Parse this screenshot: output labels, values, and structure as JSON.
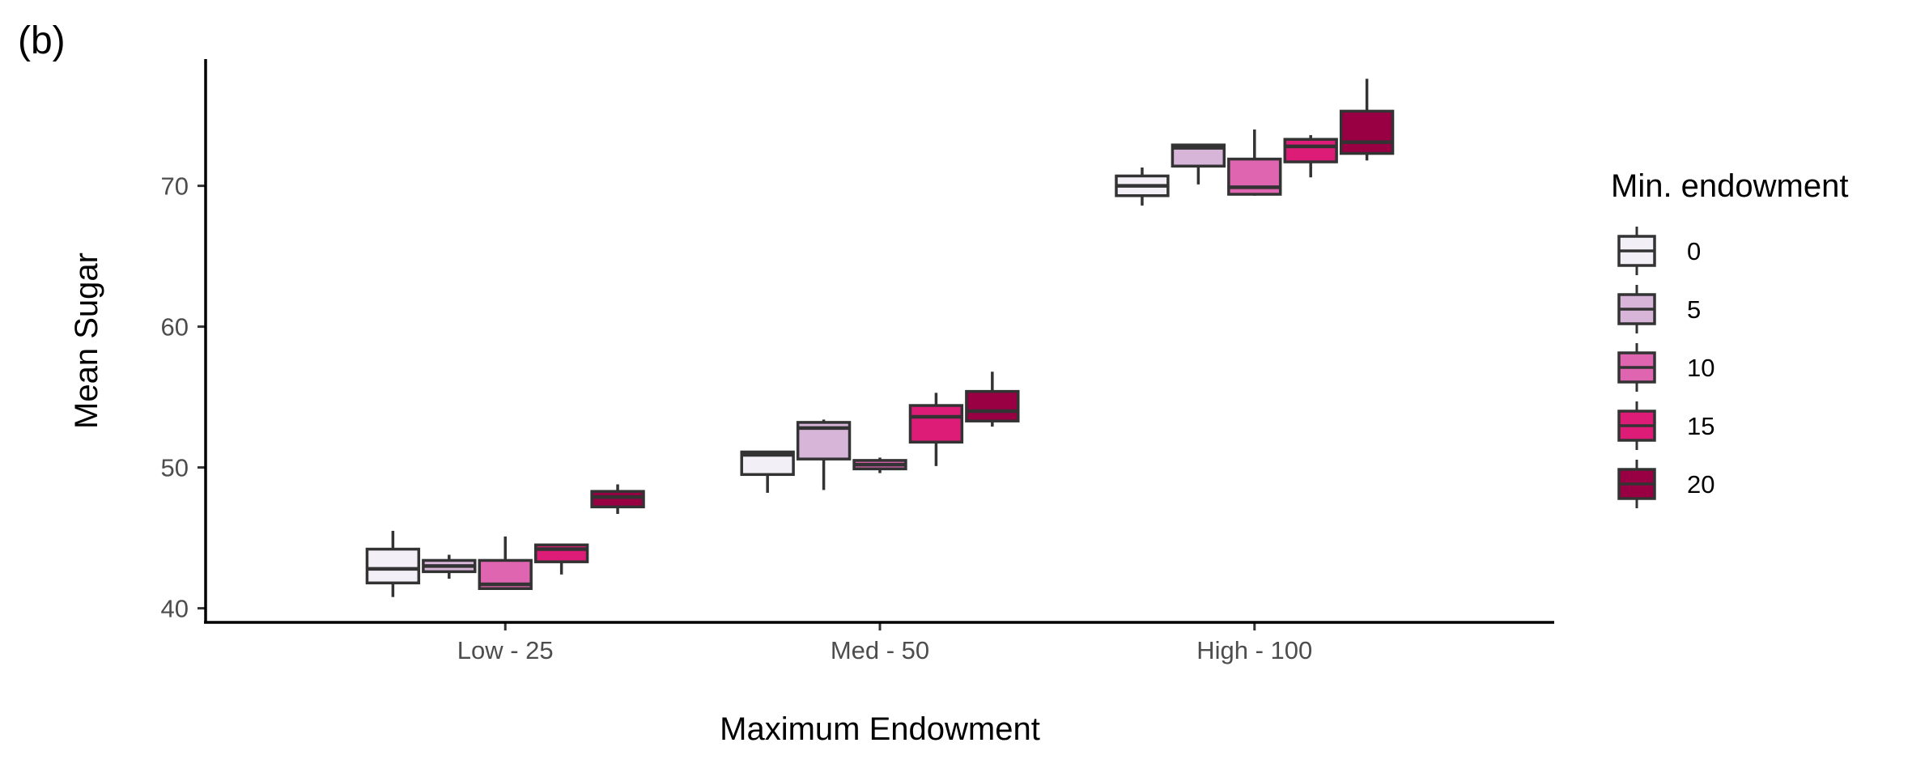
{
  "panel_label": "(b)",
  "chart_data": {
    "type": "boxplot",
    "xlabel": "Maximum Endowment",
    "ylabel": "Mean Sugar",
    "categories": [
      "Low - 25",
      "Med - 50",
      "High - 100"
    ],
    "ylim": [
      39,
      79
    ],
    "yticks": [
      40,
      50,
      60,
      70
    ],
    "grid": false,
    "legend": {
      "title": "Min. endowment",
      "position": "right"
    },
    "series": [
      {
        "name": "0",
        "color": "#f2eff7",
        "boxes": [
          {
            "whisker_low": 40.8,
            "q1": 41.8,
            "median": 42.8,
            "q3": 44.2,
            "whisker_high": 45.5
          },
          {
            "whisker_low": 48.2,
            "q1": 49.5,
            "median": 50.9,
            "q3": 51.1,
            "whisker_high": 51.1
          },
          {
            "whisker_low": 68.6,
            "q1": 69.3,
            "median": 70.0,
            "q3": 70.7,
            "whisker_high": 71.3
          }
        ]
      },
      {
        "name": "5",
        "color": "#d7b5d8",
        "boxes": [
          {
            "whisker_low": 42.1,
            "q1": 42.6,
            "median": 43.0,
            "q3": 43.4,
            "whisker_high": 43.8
          },
          {
            "whisker_low": 48.4,
            "q1": 50.6,
            "median": 52.8,
            "q3": 53.2,
            "whisker_high": 53.4
          },
          {
            "whisker_low": 70.1,
            "q1": 71.4,
            "median": 72.7,
            "q3": 72.9,
            "whisker_high": 72.9
          }
        ]
      },
      {
        "name": "10",
        "color": "#df65b0",
        "boxes": [
          {
            "whisker_low": 41.4,
            "q1": 41.4,
            "median": 41.7,
            "q3": 43.4,
            "whisker_high": 45.1
          },
          {
            "whisker_low": 49.6,
            "q1": 49.9,
            "median": 50.2,
            "q3": 50.5,
            "whisker_high": 50.7
          },
          {
            "whisker_low": 69.3,
            "q1": 69.4,
            "median": 69.9,
            "q3": 71.9,
            "whisker_high": 74.0
          }
        ]
      },
      {
        "name": "15",
        "color": "#dd1c77",
        "boxes": [
          {
            "whisker_low": 42.4,
            "q1": 43.3,
            "median": 44.2,
            "q3": 44.5,
            "whisker_high": 44.5
          },
          {
            "whisker_low": 50.1,
            "q1": 51.8,
            "median": 53.6,
            "q3": 54.4,
            "whisker_high": 55.3
          },
          {
            "whisker_low": 70.6,
            "q1": 71.7,
            "median": 72.8,
            "q3": 73.3,
            "whisker_high": 73.6
          }
        ]
      },
      {
        "name": "20",
        "color": "#980043",
        "boxes": [
          {
            "whisker_low": 46.7,
            "q1": 47.2,
            "median": 47.9,
            "q3": 48.3,
            "whisker_high": 48.8
          },
          {
            "whisker_low": 52.9,
            "q1": 53.3,
            "median": 54.0,
            "q3": 55.4,
            "whisker_high": 56.8
          },
          {
            "whisker_low": 71.8,
            "q1": 72.3,
            "median": 73.1,
            "q3": 75.3,
            "whisker_high": 77.6
          }
        ]
      }
    ]
  }
}
